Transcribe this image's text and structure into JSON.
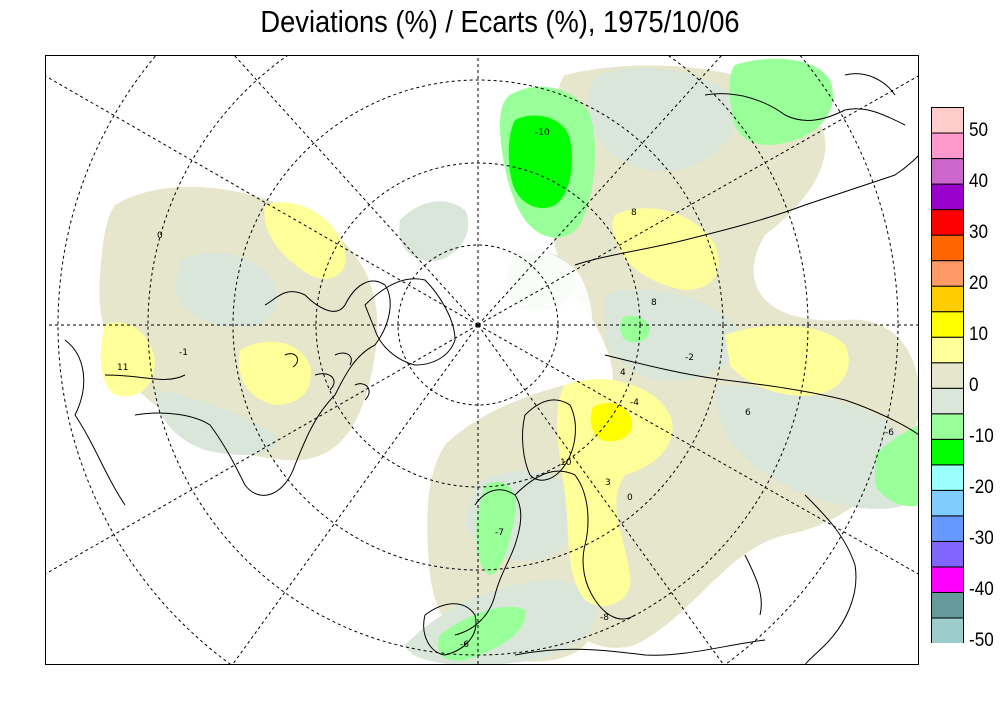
{
  "title": "Deviations (%) / Ecarts (%), 1975/10/06",
  "legend": {
    "colors": [
      "#9ccccc",
      "#669999",
      "#ff00ff",
      "#8066ff",
      "#6699ff",
      "#80ccff",
      "#99ffff",
      "#00ff00",
      "#99ff99",
      "#d9e6d9",
      "#e6e6cc",
      "#ffff99",
      "#ffff00",
      "#ffcc00",
      "#ff9966",
      "#ff6600",
      "#ff0000",
      "#9900cc",
      "#cc66cc",
      "#ff99cc",
      "#ffcccc"
    ],
    "labels": [
      "-50",
      "-40",
      "-30",
      "-20",
      "-10",
      "0",
      "10",
      "20",
      "30",
      "40",
      "50"
    ]
  },
  "map_labels": {
    "contour_labels": [
      "-10",
      "0",
      "8",
      "8",
      "-2",
      "-4",
      "4",
      "10",
      "-1",
      "6",
      "0",
      "-6",
      "-7",
      "3",
      "-8",
      "-6",
      "11"
    ]
  }
}
